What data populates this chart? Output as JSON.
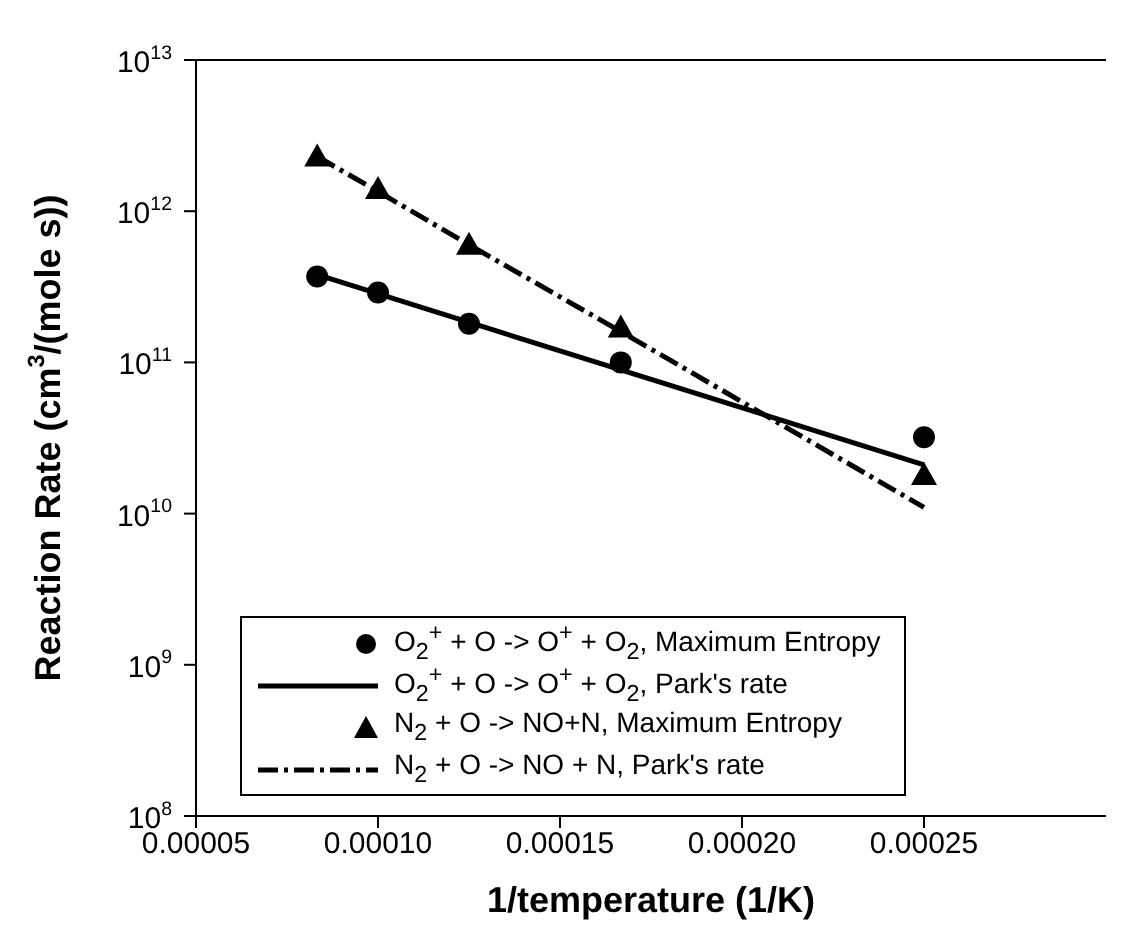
{
  "chart_data": {
    "type": "scatter",
    "xlabel": "1/temperature (1/K)",
    "ylabel": "Reaction Rate (cm$^{3}$/(mole s))",
    "log": "y",
    "legend": "bottom",
    "xlim": [
      5e-05,
      0.0003
    ],
    "xticks": [
      {
        "value": 5e-05,
        "label": "0.00005"
      },
      {
        "value": 0.0001,
        "label": "0.00010"
      },
      {
        "value": 0.00015,
        "label": "0.00015"
      },
      {
        "value": 0.0002,
        "label": "0.00020"
      },
      {
        "value": 0.00025,
        "label": "0.00025"
      }
    ],
    "ylim": [
      100000000.0,
      10000000000000.0
    ],
    "yticks": [
      {
        "value": 100000000.0,
        "label": "10$^{8}$"
      },
      {
        "value": 1000000000.0,
        "label": "10$^{9}$"
      },
      {
        "value": 10000000000.0,
        "label": "10$^{10}$"
      },
      {
        "value": 100000000000.0,
        "label": "10$^{11}$"
      },
      {
        "value": 1000000000000.0,
        "label": "10$^{12}$"
      },
      {
        "value": 10000000000000.0,
        "label": "10$^{13}$"
      }
    ],
    "series": [
      {
        "name": "O$_{2}$$^{+}$ + O -> O$^{+}$ + O$_{2}$, Maximum Entropy",
        "marker": "circle",
        "color": "#000000",
        "x": [
          8.33e-05,
          0.0001,
          0.000125,
          0.0001667,
          0.00025
        ],
        "values": [
          370000000000.0,
          290000000000.0,
          180000000000.0,
          100000000000.0,
          32000000000.0
        ]
      },
      {
        "name": "O$_{2}$$^{+}$ + O -> O$^{+}$ + O$_{2}$, Park's rate",
        "type": "line",
        "marker": "none",
        "line_style": "solid",
        "color": "#000000",
        "x": [
          8.33e-05,
          0.00025
        ],
        "values": [
          380000000000.0,
          21000000000.0
        ]
      },
      {
        "name": "N$_{2}$ + O -> NO+N, Maximum Entropy",
        "marker": "triangle",
        "color": "#000000",
        "x": [
          8.33e-05,
          0.0001,
          0.000125,
          0.0001667,
          0.00025
        ],
        "values": [
          2300000000000.0,
          1400000000000.0,
          600000000000.0,
          170000000000.0,
          18000000000.0
        ]
      },
      {
        "name": "N$_{2}$ + O -> NO + N, Park's rate",
        "type": "line",
        "marker": "none",
        "line_style": "dashed",
        "color": "#000000",
        "x": [
          8.33e-05,
          0.0001,
          0.000125,
          0.0001667,
          0.00025
        ],
        "values": [
          2300000000000.0,
          1350000000000.0,
          600000000000.0,
          160000000000.0,
          11000000000.0
        ]
      }
    ]
  }
}
